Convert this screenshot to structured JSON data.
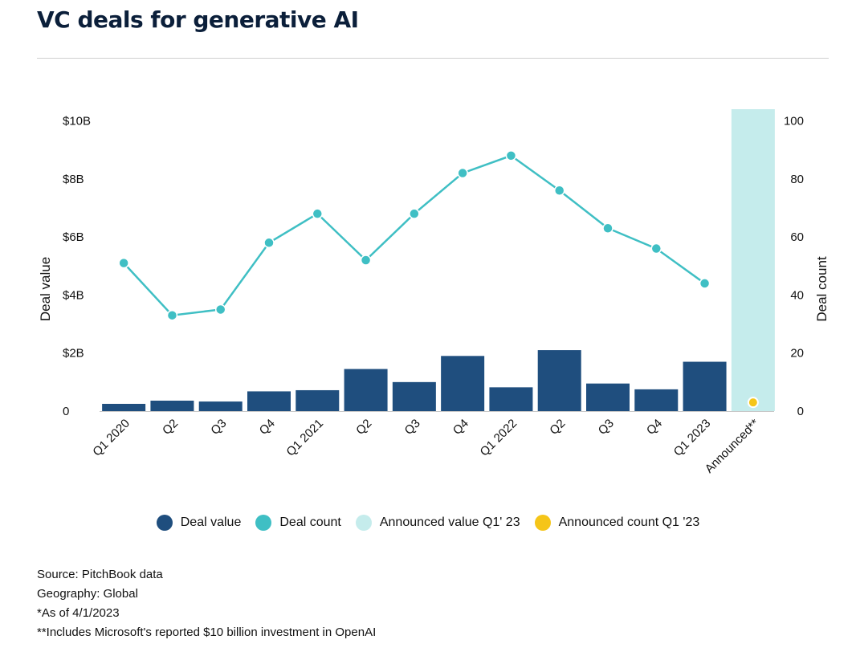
{
  "title": "VC deals for generative AI",
  "colors": {
    "deal_value": "#1f4e7e",
    "deal_count": "#3fbfc4",
    "announced_value": "#c5ecec",
    "announced_count": "#f5c518"
  },
  "chart_data": {
    "type": "bar",
    "categories": [
      "Q1 2020",
      "Q2",
      "Q3",
      "Q4",
      "Q1 2021",
      "Q2",
      "Q3",
      "Q4",
      "Q1 2022",
      "Q2",
      "Q3",
      "Q4",
      "Q1 2023",
      "Announced**"
    ],
    "series": [
      {
        "name": "Deal value",
        "axis": "left",
        "unit": "$B",
        "values": [
          0.25,
          0.36,
          0.33,
          0.68,
          0.72,
          1.45,
          1.0,
          1.9,
          0.82,
          2.1,
          0.95,
          0.75,
          1.7,
          null
        ]
      },
      {
        "name": "Deal count",
        "axis": "right",
        "type": "line",
        "values": [
          51,
          33,
          35,
          58,
          68,
          52,
          68,
          82,
          88,
          76,
          63,
          56,
          44,
          null
        ]
      },
      {
        "name": "Announced value Q1' 23",
        "axis": "left",
        "unit": "$B",
        "values": [
          null,
          null,
          null,
          null,
          null,
          null,
          null,
          null,
          null,
          null,
          null,
          null,
          null,
          10.4
        ]
      },
      {
        "name": "Announced count Q1 '23",
        "axis": "right",
        "type": "scatter",
        "values": [
          null,
          null,
          null,
          null,
          null,
          null,
          null,
          null,
          null,
          null,
          null,
          null,
          null,
          3
        ]
      }
    ],
    "y_left": {
      "label": "Deal value",
      "ticks": [
        "0",
        "$2B",
        "$4B",
        "$6B",
        "$8B",
        "$10B"
      ],
      "tick_values": [
        0,
        2,
        4,
        6,
        8,
        10
      ],
      "ylim": [
        0,
        10.4
      ]
    },
    "y_right": {
      "label": "Deal count",
      "ticks": [
        "0",
        "20",
        "40",
        "60",
        "80",
        "100"
      ],
      "tick_values": [
        0,
        20,
        40,
        60,
        80,
        100
      ],
      "ylim": [
        0,
        104
      ]
    },
    "grid": false,
    "legend_position": "bottom"
  },
  "legend": [
    {
      "label": "Deal value",
      "color": "#1f4e7e"
    },
    {
      "label": "Deal count",
      "color": "#3fbfc4"
    },
    {
      "label": "Announced value Q1' 23",
      "color": "#c5ecec"
    },
    {
      "label": "Announced count Q1 '23",
      "color": "#f5c518"
    }
  ],
  "notes": [
    "Source: PitchBook data",
    "Geography: Global",
    "*As of 4/1/2023",
    "**Includes Microsoft's reported $10 billion investment in OpenAI"
  ]
}
